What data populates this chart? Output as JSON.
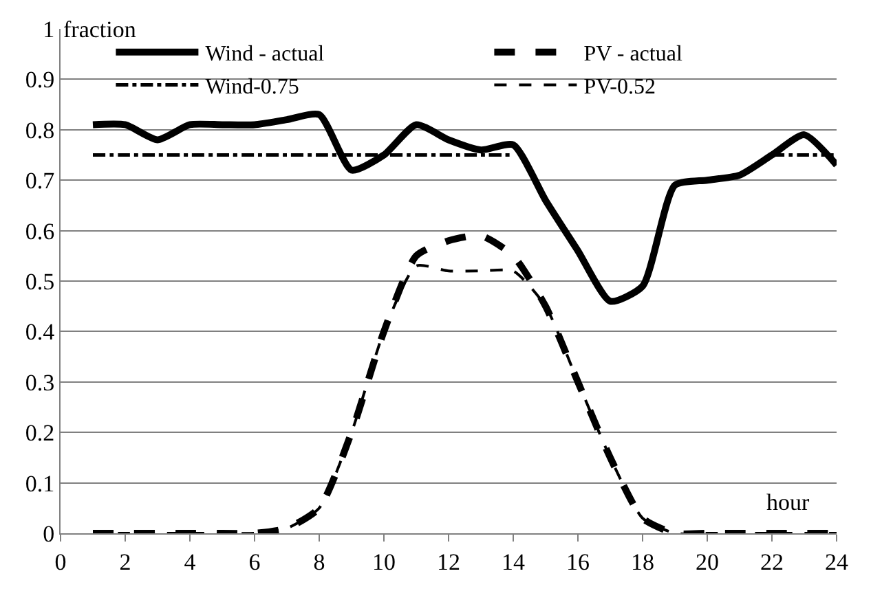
{
  "chart_data": {
    "type": "line",
    "xlabel": "hour",
    "ylabel": "fraction",
    "x": [
      1,
      2,
      3,
      4,
      5,
      6,
      7,
      8,
      9,
      10,
      11,
      12,
      13,
      14,
      15,
      16,
      17,
      18,
      19,
      20,
      21,
      22,
      23,
      24
    ],
    "series": [
      {
        "name": "Wind - actual",
        "color": "#000000",
        "line_style": "solid",
        "values": [
          0.81,
          0.81,
          0.78,
          0.81,
          0.81,
          0.81,
          0.82,
          0.83,
          0.72,
          0.75,
          0.81,
          0.78,
          0.76,
          0.77,
          0.66,
          0.56,
          0.46,
          0.49,
          0.69,
          0.7,
          0.71,
          0.75,
          0.79,
          0.73
        ]
      },
      {
        "name": "PV - actual",
        "color": "#000000",
        "line_style": "dashed",
        "values": [
          0,
          0,
          0,
          0,
          0,
          0,
          0.01,
          0.05,
          0.2,
          0.4,
          0.55,
          0.58,
          0.59,
          0.55,
          0.45,
          0.3,
          0.15,
          0.03,
          0,
          0,
          0,
          0,
          0,
          0
        ]
      },
      {
        "name": "Wind-0.75",
        "color": "#000000",
        "line_style": "dashdot",
        "values": [
          0.75,
          0.75,
          0.75,
          0.75,
          0.75,
          0.75,
          0.75,
          0.75,
          0.75,
          0.75,
          0.75,
          0.75,
          0.75,
          0.75,
          null,
          null,
          null,
          null,
          null,
          null,
          null,
          0.75,
          0.75,
          0.75
        ]
      },
      {
        "name": "PV-0.52",
        "color": "#000000",
        "line_style": "dashed",
        "values": [
          0,
          0,
          0,
          0,
          0,
          0,
          0.01,
          0.05,
          0.2,
          0.4,
          0.53,
          0.52,
          0.52,
          0.52,
          0.45,
          0.3,
          0.15,
          0.03,
          0,
          0,
          0,
          0,
          0,
          0
        ]
      }
    ],
    "xlim": [
      0,
      24
    ],
    "xticks": [
      0,
      2,
      4,
      6,
      8,
      10,
      12,
      14,
      16,
      18,
      20,
      22,
      24
    ],
    "ylim": [
      0,
      1
    ],
    "yticks": [
      0,
      0.1,
      0.2,
      0.3,
      0.4,
      0.5,
      0.6,
      0.7,
      0.8,
      0.9,
      1
    ],
    "grid": "y",
    "legend": "top",
    "marker": "none"
  }
}
